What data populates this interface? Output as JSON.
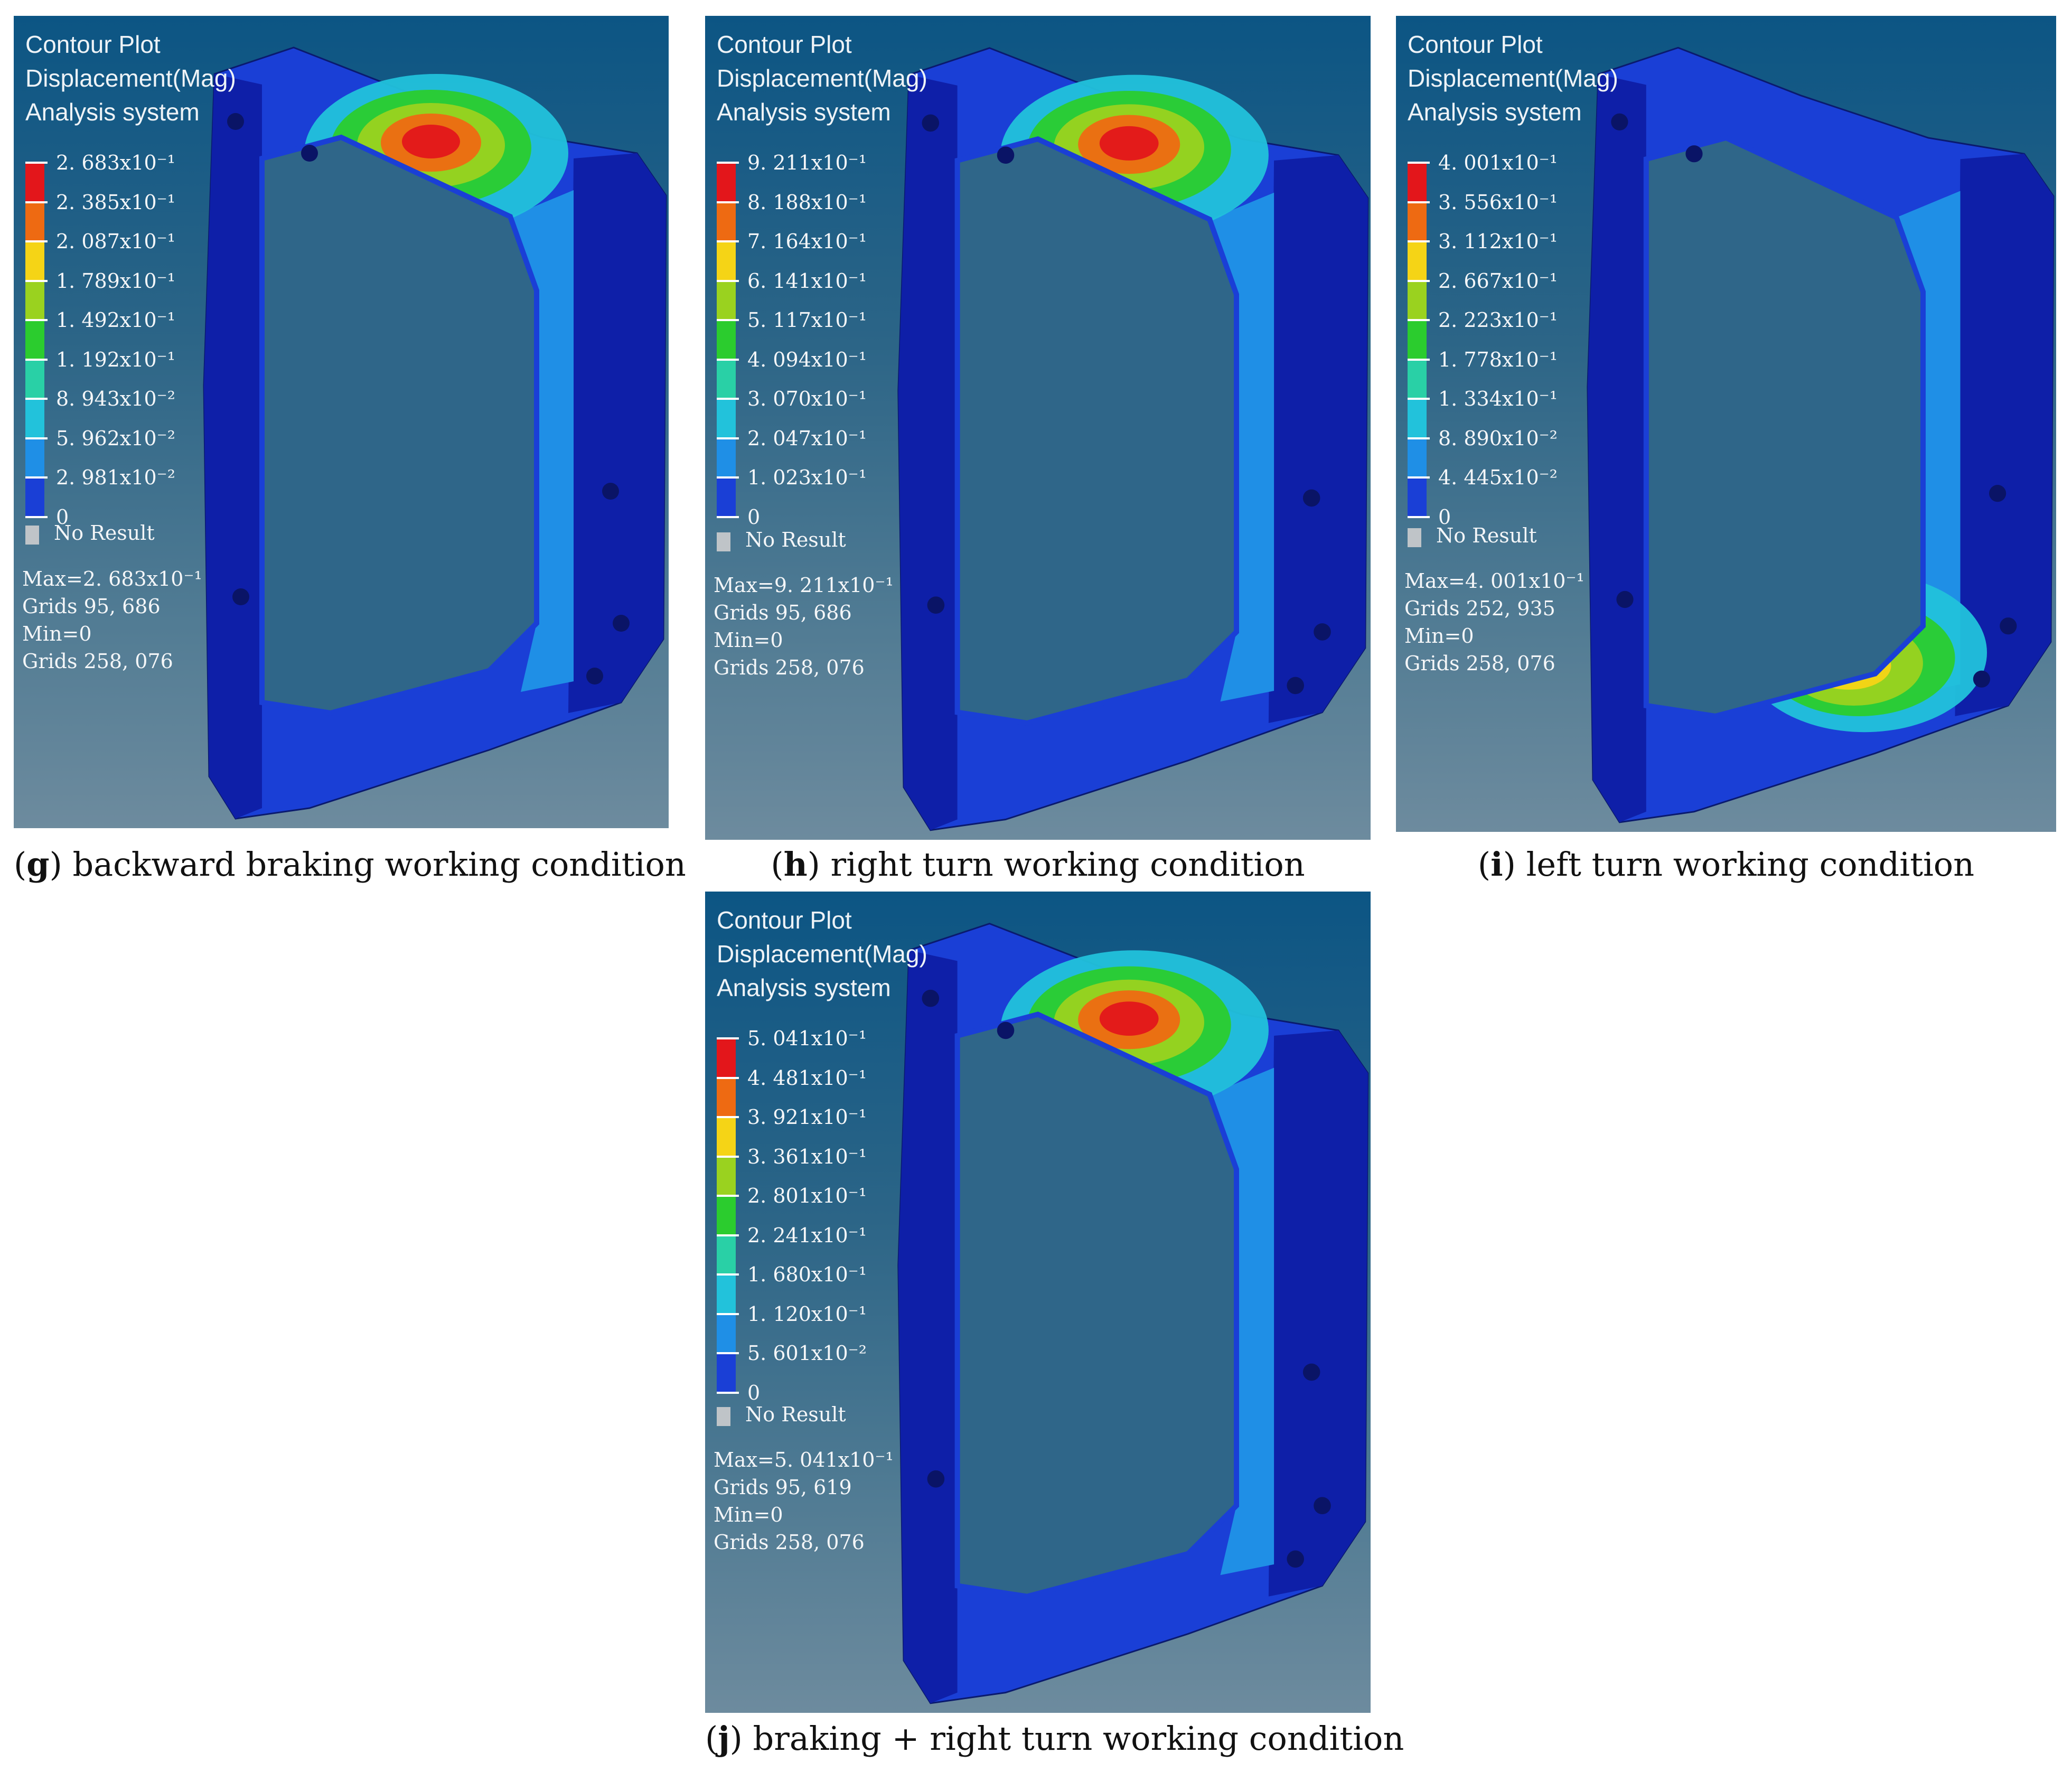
{
  "panels": [
    {
      "id": "g",
      "header": [
        "Contour Plot",
        "Displacement(Mag)",
        "Analysis system"
      ],
      "legend": [
        "2. 683x10⁻¹",
        "2. 385x10⁻¹",
        "2. 087x10⁻¹",
        "1. 789x10⁻¹",
        "1. 492x10⁻¹",
        "1. 192x10⁻¹",
        "8. 943x10⁻²",
        "5. 962x10⁻²",
        "2. 981x10⁻²",
        "0"
      ],
      "no_result": "No Result",
      "stats": [
        "Max=2. 683x10⁻¹",
        "Grids 95, 686",
        "Min=0",
        "Grids 258, 076"
      ],
      "caption_letter": "g",
      "caption_text": "backward braking working condition",
      "hotspot": "top"
    },
    {
      "id": "h",
      "header": [
        "Contour Plot",
        "Displacement(Mag)",
        "Analysis system"
      ],
      "legend": [
        "9. 211x10⁻¹",
        "8. 188x10⁻¹",
        "7. 164x10⁻¹",
        "6. 141x10⁻¹",
        "5. 117x10⁻¹",
        "4. 094x10⁻¹",
        "3. 070x10⁻¹",
        "2. 047x10⁻¹",
        "1. 023x10⁻¹",
        "0"
      ],
      "no_result": "No Result",
      "stats": [
        "Max=9. 211x10⁻¹",
        "Grids 95, 686",
        "Min=0",
        "Grids 258, 076"
      ],
      "caption_letter": "h",
      "caption_text": "right turn working condition",
      "hotspot": "top"
    },
    {
      "id": "i",
      "header": [
        "Contour Plot",
        "Displacement(Mag)",
        "Analysis system"
      ],
      "legend": [
        "4. 001x10⁻¹",
        "3. 556x10⁻¹",
        "3. 112x10⁻¹",
        "2. 667x10⁻¹",
        "2. 223x10⁻¹",
        "1. 778x10⁻¹",
        "1. 334x10⁻¹",
        "8. 890x10⁻²",
        "4. 445x10⁻²",
        "0"
      ],
      "no_result": "No Result",
      "stats": [
        "Max=4. 001x10⁻¹",
        "Grids 252, 935",
        "Min=0",
        "Grids 258, 076"
      ],
      "caption_letter": "i",
      "caption_text": "left turn working condition",
      "hotspot": "bottom"
    },
    {
      "id": "j",
      "header": [
        "Contour Plot",
        "Displacement(Mag)",
        "Analysis system"
      ],
      "legend": [
        "5. 041x10⁻¹",
        "4. 481x10⁻¹",
        "3. 921x10⁻¹",
        "3. 361x10⁻¹",
        "2. 801x10⁻¹",
        "2. 241x10⁻¹",
        "1. 680x10⁻¹",
        "1. 120x10⁻¹",
        "5. 601x10⁻²",
        "0"
      ],
      "no_result": "No Result",
      "stats": [
        "Max=5. 041x10⁻¹",
        "Grids 95, 619",
        "Min=0",
        "Grids 258, 076"
      ],
      "caption_letter": "j",
      "caption_text": "braking + right turn working condition",
      "hotspot": "top"
    }
  ],
  "legend_colors": [
    "#e3161b",
    "#ee6a12",
    "#f5d416",
    "#9ad21f",
    "#2bcc2e",
    "#29d0a6",
    "#22c2db",
    "#1f8fe6",
    "#1a3fd6",
    "#0e1fa8"
  ]
}
